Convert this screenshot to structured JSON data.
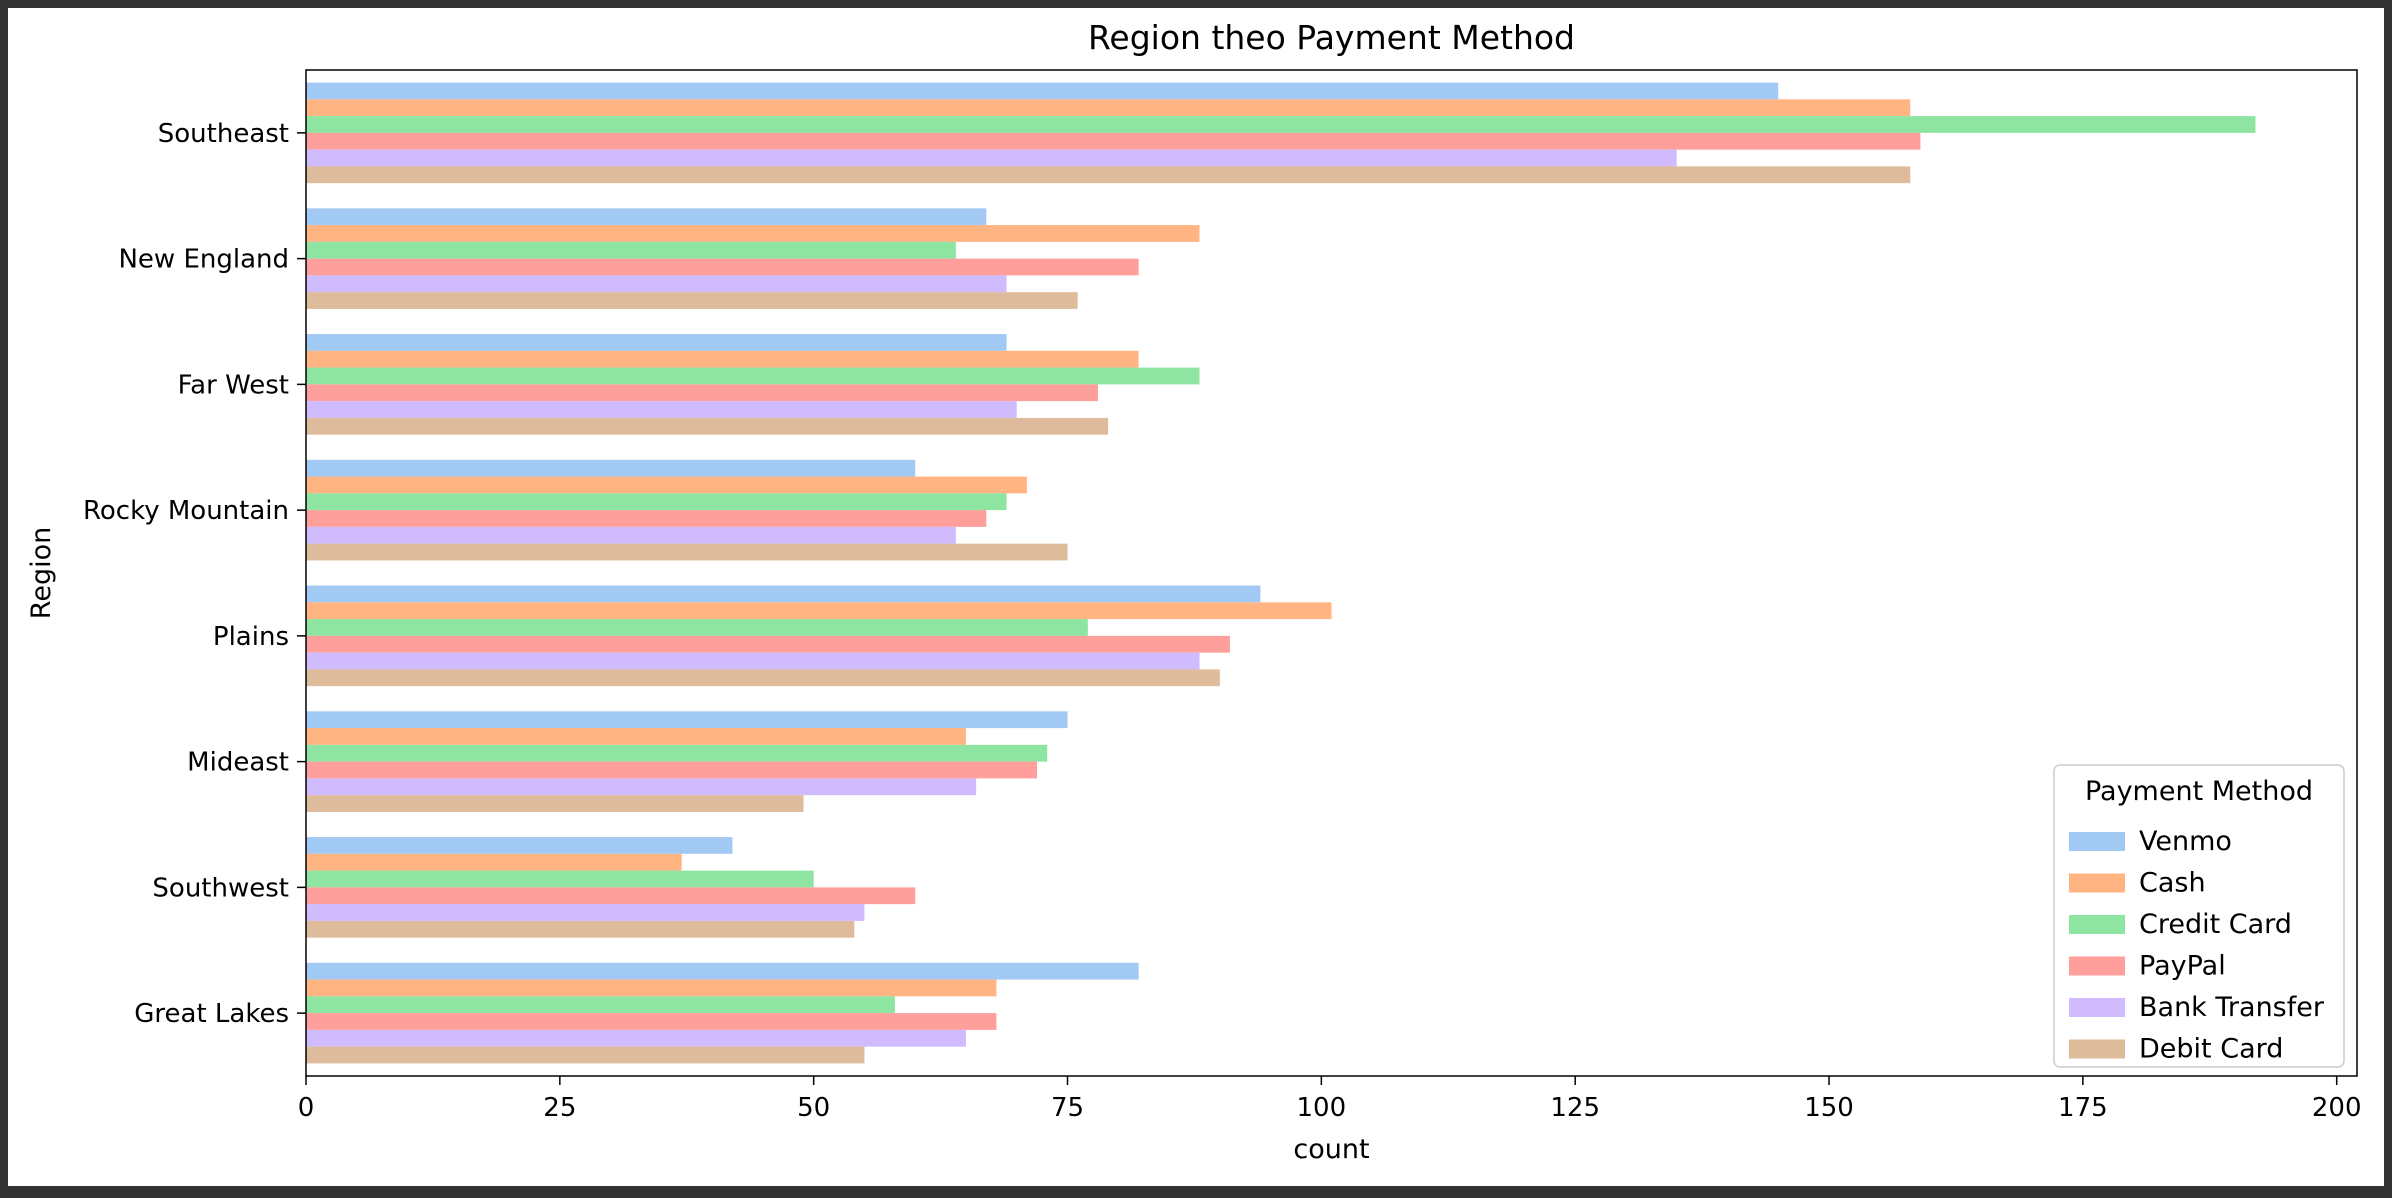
{
  "chart_data": {
    "type": "bar",
    "orientation": "horizontal",
    "title": "Region theo Payment Method",
    "xlabel": "count",
    "ylabel": "Region",
    "xlim": [
      0,
      202
    ],
    "xticks": [
      0,
      25,
      50,
      75,
      100,
      125,
      150,
      175,
      200
    ],
    "grid": false,
    "legend_title": "Payment Method",
    "legend_position": "lower-right",
    "categories": [
      "Southeast",
      "New England",
      "Far West",
      "Rocky Mountain",
      "Plains",
      "Mideast",
      "Southwest",
      "Great Lakes"
    ],
    "series": [
      {
        "name": "Venmo",
        "color": "#a1c9f4",
        "values": [
          145,
          67,
          69,
          60,
          94,
          75,
          42,
          82
        ]
      },
      {
        "name": "Cash",
        "color": "#ffb482",
        "values": [
          158,
          88,
          82,
          71,
          101,
          65,
          37,
          68
        ]
      },
      {
        "name": "Credit Card",
        "color": "#8de5a1",
        "values": [
          192,
          64,
          88,
          69,
          77,
          73,
          50,
          58
        ]
      },
      {
        "name": "PayPal",
        "color": "#ff9f9b",
        "values": [
          159,
          82,
          78,
          67,
          91,
          72,
          60,
          68
        ]
      },
      {
        "name": "Bank Transfer",
        "color": "#d0bbff",
        "values": [
          135,
          69,
          70,
          64,
          88,
          66,
          55,
          65
        ]
      },
      {
        "name": "Debit Card",
        "color": "#debb9b",
        "values": [
          158,
          76,
          79,
          75,
          90,
          49,
          54,
          55
        ]
      }
    ]
  }
}
